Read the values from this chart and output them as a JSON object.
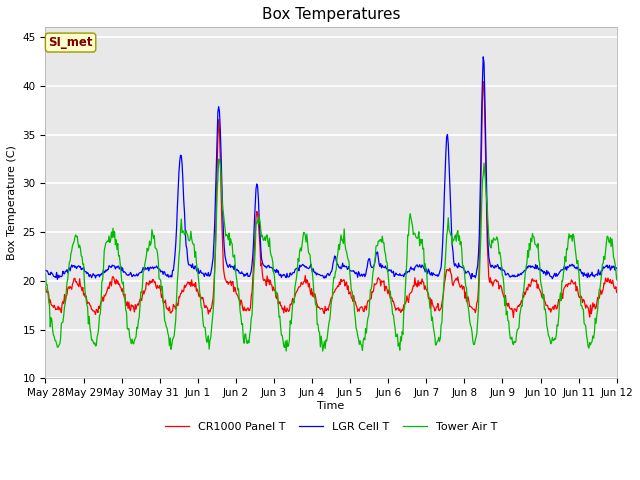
{
  "title": "Box Temperatures",
  "xlabel": "Time",
  "ylabel": "Box Temperature (C)",
  "ylim": [
    10,
    46
  ],
  "yticks": [
    10,
    15,
    20,
    25,
    30,
    35,
    40,
    45
  ],
  "plot_bg_color": "#e8e8e8",
  "fig_bg_color": "#ffffff",
  "grid_color": "#d0d0d0",
  "annotation_text": "SI_met",
  "annotation_box_facecolor": "#ffffcc",
  "annotation_text_color": "#800000",
  "annotation_edge_color": "#999900",
  "legend": [
    "CR1000 Panel T",
    "LGR Cell T",
    "Tower Air T"
  ],
  "line_colors": [
    "#ff0000",
    "#0000ff",
    "#00bb00"
  ],
  "x_tick_labels": [
    "May 28",
    "May 29",
    "May 30",
    "May 31",
    "Jun 1",
    "Jun 2",
    "Jun 3",
    "Jun 4",
    "Jun 5",
    "Jun 6",
    "Jun 7",
    "Jun 8",
    "Jun 9",
    "Jun 10",
    "Jun 11",
    "Jun 12"
  ],
  "title_fontsize": 11,
  "label_fontsize": 8,
  "tick_fontsize": 7.5,
  "legend_fontsize": 8
}
